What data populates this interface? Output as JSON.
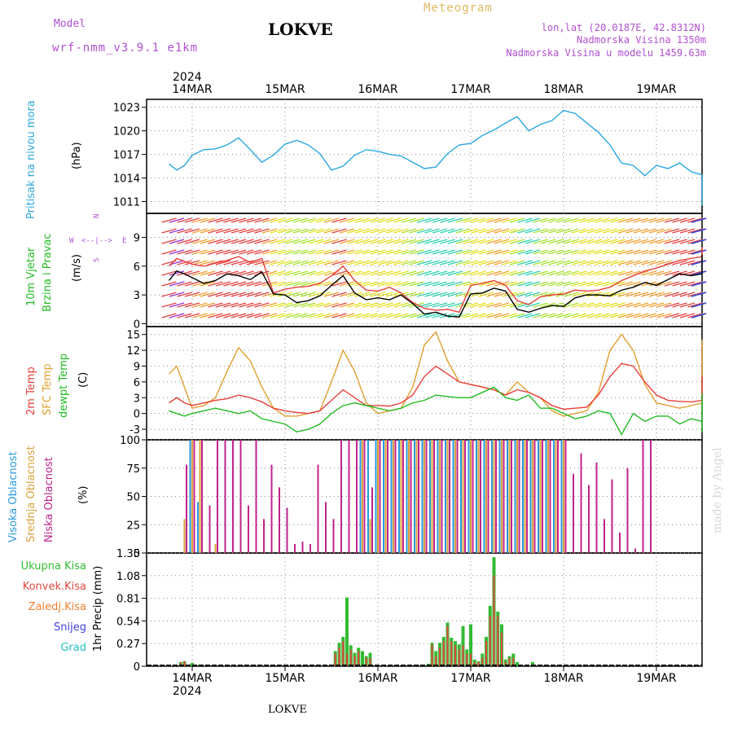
{
  "header": {
    "model_label": "Model",
    "model_value": "wrf-nmm_v3.9.1 e1km",
    "station": "LOKVE",
    "meteogram": "Meteogram",
    "lonlat": "lon,lat (20.0187E, 42.8312N)",
    "elevation": "Nadmorska Visina 1350m",
    "model_elevation": "Nadmorska Visina u modelu 1459.63m",
    "year": "2024",
    "footer_station": "LOKVE",
    "watermark": "made by Angel"
  },
  "colors": {
    "pressure": "#2aa7df",
    "wind_speed_line": "#000000",
    "wind_gust": "#e8403a",
    "temp2m": "#e8403a",
    "sfc_temp": "#e0a030",
    "dewpt": "#22bb22",
    "cloud_high": "#2a98dd",
    "cloud_mid": "#d9a23a",
    "cloud_low": "#c0238c",
    "precip_total": "#33bb33",
    "precip_conv": "#e04a40",
    "precip_frz": "#f08030",
    "precip_snow": "#4040dd",
    "precip_hail": "#22c0c0",
    "purple_text": "#b050d0",
    "meteogram_text": "#e0b860"
  },
  "time_axis": {
    "dates": [
      "14MAR",
      "15MAR",
      "16MAR",
      "17MAR",
      "18MAR",
      "19MAR"
    ],
    "hours": 72
  },
  "chart_data": [
    {
      "type": "line",
      "title": "Pritisak na nivou mora",
      "ylabel": "(hPa)",
      "yticks": [
        "1023",
        "1020",
        "1017",
        "1014",
        "1011"
      ],
      "ylim": [
        1009.5,
        1024
      ],
      "x_hours_from_14MAR_00": [
        -6,
        -4,
        -2,
        0,
        3,
        6,
        9,
        12,
        15,
        18,
        21,
        24,
        27,
        30,
        33,
        36,
        39,
        42,
        45,
        48,
        51,
        54,
        57,
        60,
        63,
        66,
        69,
        72,
        75,
        78,
        81,
        84,
        87,
        90,
        93,
        96,
        99,
        102,
        105,
        108,
        111,
        114,
        117,
        120,
        123,
        126,
        129,
        132,
        135,
        138,
        141,
        144,
        147,
        150,
        152
      ],
      "series": [
        {
          "values": [
            1015.8,
            1015.0,
            1015.6,
            1016.9,
            1017.6,
            1017.7,
            1018.2,
            1019.1,
            1017.6,
            1016.0,
            1016.9,
            1018.3,
            1018.8,
            1018.2,
            1017.1,
            1015.0,
            1015.5,
            1016.9,
            1017.6,
            1017.4,
            1017.0,
            1016.8,
            1016.0,
            1015.2,
            1015.4,
            1017.1,
            1018.2,
            1018.4,
            1019.4,
            1020.1,
            1021.0,
            1021.8,
            1020.0,
            1020.8,
            1021.3,
            1022.6,
            1022.2,
            1021.0,
            1019.8,
            1018.2,
            1015.9,
            1015.6,
            1014.3,
            1015.6,
            1015.2,
            1015.9,
            1014.8,
            1014.4,
            1013.9,
            1013.0,
            1012.3,
            1011.5,
            1011.2,
            1010.7,
            1010.5
          ]
        }
      ]
    },
    {
      "type": "line",
      "title": "10m Vjetar Brzina i Pravac",
      "ylabel": "(m/s)",
      "compass": "N  W  E  S",
      "yticks": [
        "9",
        "6",
        "3",
        "0"
      ],
      "ylim": [
        -0.3,
        11.5
      ],
      "x_hours_from_14MAR_00": [
        -6,
        -4,
        -2,
        0,
        3,
        6,
        9,
        12,
        15,
        18,
        21,
        24,
        27,
        30,
        33,
        36,
        39,
        42,
        45,
        48,
        51,
        54,
        57,
        60,
        63,
        66,
        69,
        72,
        75,
        78,
        81,
        84,
        87,
        90,
        93,
        96,
        99,
        102,
        105,
        108,
        111,
        114,
        117,
        120,
        123,
        126,
        129,
        132,
        135,
        138,
        141,
        144,
        147,
        150,
        152
      ],
      "series": [
        {
          "values": [
            4.5,
            5.5,
            5.2,
            4.8,
            4.2,
            4.5,
            5.2,
            5.0,
            4.6,
            5.4,
            3.1,
            3.0,
            2.2,
            2.4,
            2.9,
            4.0,
            5.0,
            3.2,
            2.5,
            2.7,
            2.5,
            3.0,
            2.1,
            1.0,
            1.2,
            0.8,
            0.7,
            3.1,
            3.2,
            3.7,
            3.4,
            1.5,
            1.2,
            1.6,
            1.9,
            1.8,
            2.7,
            3.0,
            3.0,
            2.9,
            3.5,
            3.8,
            4.3,
            4.0,
            4.6,
            5.2,
            5.0,
            5.2,
            5.3,
            5.4,
            5.3,
            5.4,
            6.2,
            7.2,
            7.2
          ]
        },
        {
          "values": [
            6.0,
            6.8,
            6.5,
            6.2,
            6.0,
            6.3,
            6.6,
            7.0,
            6.4,
            6.8,
            3.2,
            3.6,
            3.8,
            3.9,
            4.2,
            5.0,
            6.0,
            4.5,
            3.5,
            3.4,
            3.8,
            3.2,
            2.2,
            1.6,
            1.4,
            1.5,
            1.2,
            4.0,
            4.2,
            4.5,
            4.0,
            2.4,
            2.0,
            2.8,
            3.0,
            3.1,
            3.5,
            3.4,
            3.5,
            3.8,
            4.5,
            5.0,
            5.5,
            5.8,
            6.2,
            6.6,
            6.8,
            7.0,
            7.2,
            7.0,
            7.0,
            7.2,
            7.5,
            8.0,
            8.0
          ]
        }
      ]
    },
    {
      "type": "line",
      "ylabel": "(C)",
      "yticks": [
        "15",
        "12",
        "9",
        "6",
        "3",
        "0",
        "-3"
      ],
      "ylim": [
        -5,
        16.5
      ],
      "x_hours_from_14MAR_00": [
        -6,
        -4,
        -2,
        0,
        3,
        6,
        9,
        12,
        15,
        18,
        21,
        24,
        27,
        30,
        33,
        36,
        39,
        42,
        45,
        48,
        51,
        54,
        57,
        60,
        63,
        66,
        69,
        72,
        75,
        78,
        81,
        84,
        87,
        90,
        93,
        96,
        99,
        102,
        105,
        108,
        111,
        114,
        117,
        120,
        123,
        126,
        129,
        132,
        135,
        138,
        141,
        144,
        147,
        150,
        152
      ],
      "series": [
        {
          "name": "2m Temp",
          "values": [
            2.0,
            3.0,
            2.0,
            1.5,
            2.0,
            2.5,
            2.8,
            3.5,
            3.0,
            2.2,
            1.0,
            0.5,
            0.2,
            0.0,
            0.5,
            2.5,
            4.5,
            3.0,
            1.5,
            1.5,
            1.4,
            2.0,
            3.5,
            7.0,
            9.0,
            7.5,
            6.0,
            5.5,
            5.0,
            4.5,
            3.5,
            4.5,
            4.0,
            3.0,
            1.5,
            0.8,
            1.0,
            1.2,
            3.5,
            7.0,
            9.5,
            9.0,
            6.0,
            3.5,
            2.5,
            2.3,
            2.2,
            2.5,
            4.0,
            6.0,
            7.0,
            6.5,
            7.0,
            7.0,
            6.5
          ]
        },
        {
          "name": "SFC Temp",
          "values": [
            7.5,
            9.0,
            5.0,
            1.0,
            1.5,
            3.0,
            8.0,
            12.5,
            10.0,
            5.0,
            1.0,
            -0.5,
            -0.5,
            0.0,
            0.5,
            6.0,
            12.0,
            8.0,
            2.0,
            0.0,
            0.5,
            1.0,
            5.0,
            13.0,
            15.5,
            10.0,
            6.0,
            5.5,
            5.0,
            4.5,
            3.5,
            6.0,
            4.0,
            3.0,
            0.5,
            -0.5,
            0.0,
            0.5,
            4.0,
            12.0,
            15.0,
            12.0,
            5.5,
            2.0,
            1.5,
            1.0,
            1.5,
            2.0,
            6.0,
            12.0,
            10.0,
            8.0,
            11.0,
            14.0,
            10.0
          ]
        },
        {
          "name": "dewpt Temp",
          "values": [
            0.5,
            0.0,
            -0.5,
            0.0,
            0.5,
            1.0,
            0.5,
            0.0,
            0.5,
            -1.0,
            -1.5,
            -2.0,
            -3.5,
            -3.0,
            -2.0,
            0.0,
            1.5,
            2.0,
            1.5,
            1.0,
            0.5,
            1.0,
            2.0,
            2.5,
            3.5,
            3.2,
            3.0,
            3.0,
            4.0,
            5.0,
            3.0,
            2.5,
            3.5,
            1.0,
            1.0,
            0.0,
            -1.0,
            -0.5,
            0.5,
            0.0,
            -4.0,
            0.0,
            -1.5,
            -0.5,
            -0.5,
            -2.0,
            -1.0,
            -1.5,
            -2.5,
            -3.5,
            -3.0,
            -1.5,
            0.5,
            2.5,
            3.8
          ]
        }
      ]
    },
    {
      "type": "bar",
      "ylabel": "(%)",
      "yticks": [
        "100",
        "75",
        "50",
        "25",
        "0"
      ],
      "ylim": [
        0,
        100
      ],
      "x_hours_from_14MAR_00": [
        -2,
        0,
        2,
        4,
        6,
        8,
        10,
        12,
        14,
        16,
        18,
        20,
        22,
        24,
        26,
        28,
        30,
        32,
        34,
        36,
        38,
        40,
        42,
        44,
        46,
        48,
        50,
        52,
        54,
        56,
        58,
        60,
        62,
        64,
        66,
        68,
        70,
        72,
        74,
        76,
        78,
        80,
        82,
        84,
        86,
        88,
        90,
        92,
        94,
        96,
        98,
        100,
        102,
        104,
        106,
        108,
        110,
        112,
        114,
        116,
        118,
        120,
        122,
        124,
        126,
        128,
        130,
        132,
        134,
        136,
        138,
        140,
        142,
        144,
        146,
        148,
        150,
        152
      ],
      "series": [
        {
          "name": "Visoka Oblacnost",
          "values": [
            0,
            100,
            45,
            0,
            0,
            0,
            0,
            0,
            0,
            0,
            0,
            0,
            0,
            0,
            0,
            0,
            0,
            0,
            0,
            0,
            0,
            0,
            0,
            100,
            100,
            100,
            100,
            100,
            100,
            100,
            100,
            100,
            100,
            100,
            100,
            100,
            100,
            100,
            100,
            100,
            100,
            100,
            100,
            100,
            100,
            100,
            100,
            100,
            100,
            100,
            0,
            0,
            0,
            0,
            0,
            0,
            0,
            0,
            0,
            0,
            0,
            0,
            0,
            0,
            0,
            0,
            0,
            0,
            0,
            0,
            0,
            42,
            100,
            100,
            100,
            100,
            100,
            100
          ]
        },
        {
          "name": "Srednja Oblacnost",
          "values": [
            30,
            100,
            100,
            0,
            8,
            0,
            0,
            0,
            0,
            0,
            0,
            0,
            0,
            0,
            0,
            0,
            0,
            0,
            0,
            0,
            0,
            0,
            0,
            100,
            30,
            100,
            100,
            100,
            100,
            100,
            100,
            100,
            100,
            100,
            100,
            100,
            100,
            100,
            100,
            100,
            100,
            100,
            100,
            100,
            100,
            100,
            100,
            100,
            100,
            100,
            0,
            0,
            0,
            0,
            0,
            0,
            0,
            0,
            0,
            0,
            0,
            0,
            0,
            0,
            0,
            0,
            0,
            0,
            0,
            0,
            0,
            60,
            100,
            100,
            100,
            100,
            100,
            100
          ]
        },
        {
          "name": "Niska Oblacnost",
          "values": [
            78,
            100,
            100,
            42,
            100,
            100,
            100,
            100,
            42,
            100,
            30,
            78,
            58,
            40,
            8,
            10,
            8,
            78,
            45,
            30,
            100,
            100,
            100,
            100,
            58,
            100,
            100,
            100,
            100,
            100,
            100,
            100,
            100,
            100,
            100,
            100,
            100,
            100,
            100,
            100,
            100,
            100,
            100,
            100,
            100,
            100,
            100,
            100,
            100,
            100,
            70,
            88,
            60,
            80,
            30,
            65,
            18,
            75,
            4,
            100,
            100,
            0,
            0,
            0,
            0,
            0,
            0,
            0,
            0,
            0,
            0,
            100,
            100,
            100,
            100,
            100,
            100,
            100
          ]
        }
      ]
    },
    {
      "type": "bar",
      "ylabel": "1hr Precip (mm)",
      "yticks": [
        "1.35",
        "1.08",
        "0.81",
        "0.54",
        "0.27",
        "0"
      ],
      "ylim": [
        0,
        1.35
      ],
      "legend": [
        "Ukupna Kisa",
        "Konvek.Kisa",
        "Zaledj.Kisa",
        "Snijeg",
        "Grad"
      ],
      "x_hours_from_14MAR_00": [
        -3,
        -2,
        -1,
        0,
        1,
        2,
        37,
        38,
        39,
        40,
        41,
        42,
        43,
        44,
        45,
        46,
        47,
        48,
        61,
        62,
        63,
        64,
        65,
        66,
        67,
        68,
        69,
        70,
        71,
        72,
        73,
        74,
        75,
        76,
        77,
        78,
        79,
        80,
        81,
        82,
        83,
        84,
        85,
        86,
        87,
        88,
        89,
        90,
        150,
        151,
        152
      ],
      "series": [
        {
          "name": "Ukupna Kisa",
          "values": [
            0.05,
            0.06,
            0.0,
            0.04,
            0.0,
            0.02,
            0.18,
            0.28,
            0.35,
            0.82,
            0.25,
            0.16,
            0.22,
            0.18,
            0.12,
            0.16,
            0.0,
            0.0,
            0.03,
            0.28,
            0.18,
            0.28,
            0.35,
            0.52,
            0.34,
            0.3,
            0.26,
            0.48,
            0.2,
            0.5,
            0.08,
            0.06,
            0.15,
            0.35,
            0.72,
            1.3,
            0.65,
            0.5,
            0.08,
            0.12,
            0.15,
            0.05,
            0.02,
            0.0,
            0.0,
            0.05,
            0.0,
            0.02,
            0.27,
            0.72,
            1.05
          ]
        },
        {
          "name": "Konvek.Kisa",
          "values": [
            0.05,
            0.06,
            0.0,
            0.0,
            0.0,
            0.0,
            0.15,
            0.22,
            0.3,
            0.15,
            0.2,
            0.12,
            0.18,
            0.0,
            0.1,
            0.1,
            0.0,
            0.0,
            0.0,
            0.26,
            0.12,
            0.22,
            0.3,
            0.48,
            0.3,
            0.25,
            0.2,
            0.25,
            0.15,
            0.15,
            0.05,
            0.05,
            0.1,
            0.3,
            0.6,
            1.08,
            0.6,
            0.4,
            0.05,
            0.1,
            0.1,
            0.0,
            0.0,
            0.0,
            0.0,
            0.0,
            0.0,
            0.0,
            0.02,
            0.05,
            0.1
          ]
        }
      ]
    }
  ]
}
